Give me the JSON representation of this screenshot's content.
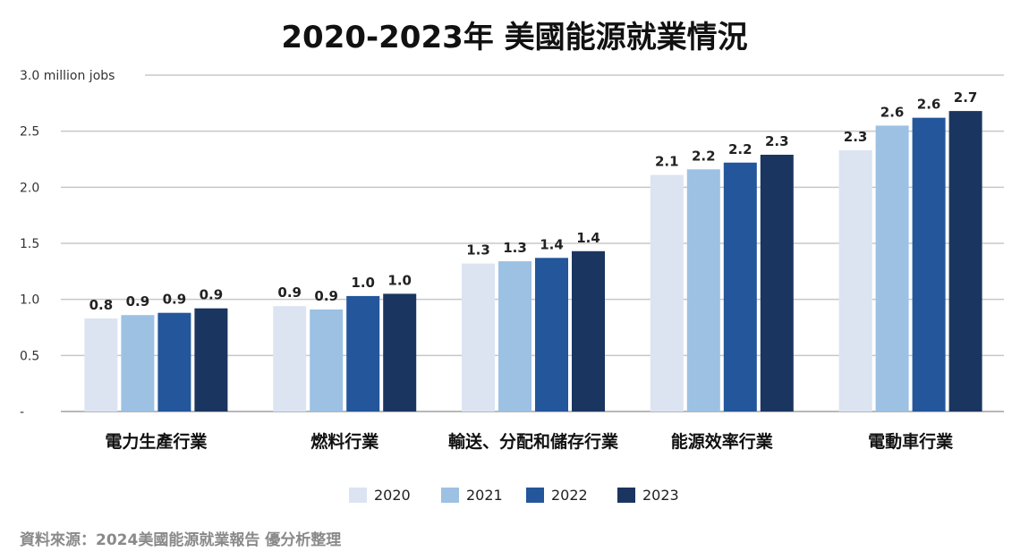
{
  "title": "2020-2023年 美國能源就業情況",
  "source": "資料來源：2024美國能源就業報告 優分析整理",
  "chart_data": {
    "type": "bar",
    "title": "2020-2023年 美國能源就業情況",
    "ylim": [
      0,
      3.0
    ],
    "yticks": [
      {
        "value": 0,
        "label": "-"
      },
      {
        "value": 0.5,
        "label": "0.5"
      },
      {
        "value": 1.0,
        "label": "1.0"
      },
      {
        "value": 1.5,
        "label": "1.5"
      },
      {
        "value": 2.0,
        "label": "2.0"
      },
      {
        "value": 2.5,
        "label": "2.5"
      },
      {
        "value": 3.0,
        "label": "3.0 million jobs"
      }
    ],
    "grid": true,
    "legend_position": "bottom",
    "categories": [
      "電力生產行業",
      "燃料行業",
      "輸送、分配和儲存行業",
      "能源效率行業",
      "電動車行業"
    ],
    "series": [
      {
        "name": "2020",
        "color": "#dce4f2",
        "values": [
          0.83,
          0.94,
          1.32,
          2.11,
          2.33
        ],
        "labels": [
          "0.8",
          "0.9",
          "1.3",
          "2.1",
          "2.3"
        ]
      },
      {
        "name": "2021",
        "color": "#9cc1e3",
        "values": [
          0.86,
          0.91,
          1.34,
          2.16,
          2.55
        ],
        "labels": [
          "0.9",
          "0.9",
          "1.3",
          "2.2",
          "2.6"
        ]
      },
      {
        "name": "2022",
        "color": "#23569b",
        "values": [
          0.88,
          1.03,
          1.37,
          2.22,
          2.62
        ],
        "labels": [
          "0.9",
          "1.0",
          "1.4",
          "2.2",
          "2.6"
        ]
      },
      {
        "name": "2023",
        "color": "#1a355f",
        "values": [
          0.92,
          1.05,
          1.43,
          2.29,
          2.68
        ],
        "labels": [
          "0.9",
          "1.0",
          "1.4",
          "2.3",
          "2.7"
        ]
      }
    ]
  }
}
